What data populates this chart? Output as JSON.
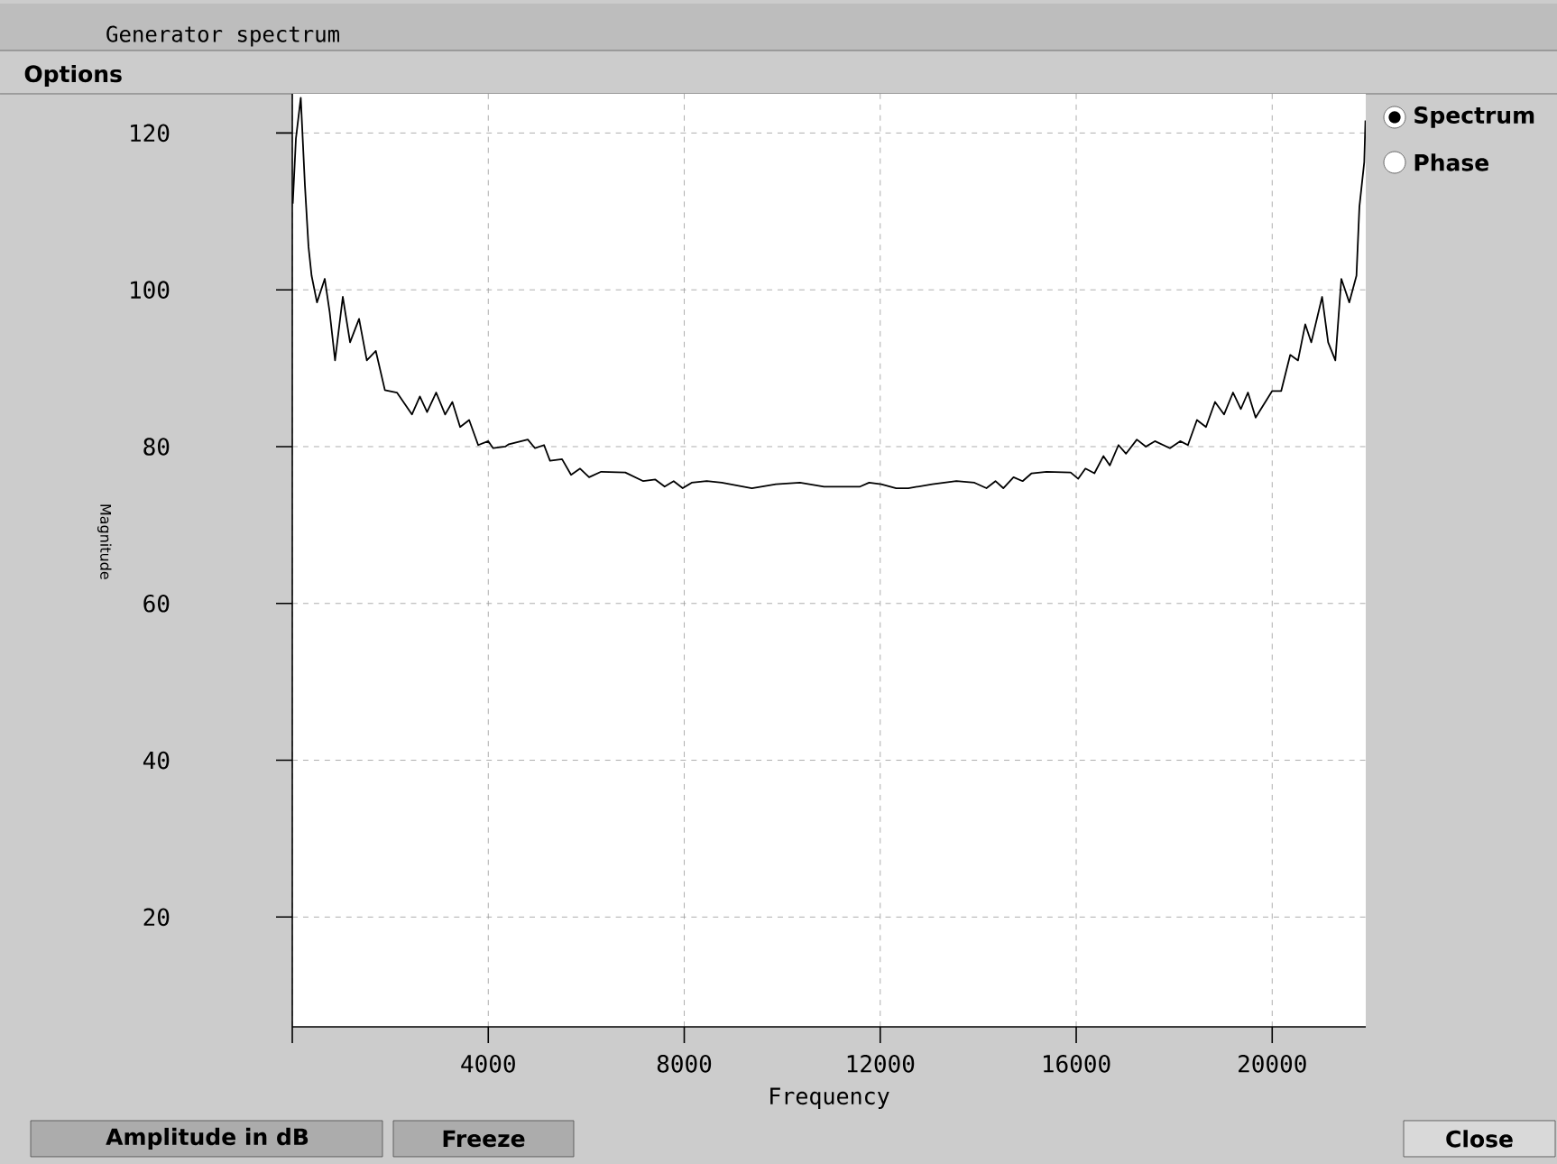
{
  "chart_data": {
    "type": "line",
    "title": "Generator spectrum",
    "xlabel": "Frequency",
    "ylabel": "Magnitude",
    "annotations": [
      "Options",
      "Spectrum",
      "Phase",
      "Amplitude in dB",
      "Freeze",
      "Close"
    ],
    "x": [
      10,
      74,
      173,
      258,
      331,
      394,
      504,
      663,
      762,
      873,
      1031,
      1179,
      1363,
      1521,
      1705,
      1890,
      2136,
      2442,
      2604,
      2751,
      2936,
      3120,
      3267,
      3425,
      3610,
      3794,
      4000,
      4100,
      4346,
      4420,
      4807,
      4954,
      5138,
      5260,
      5506,
      5690,
      5874,
      6058,
      6304,
      6796,
      7164,
      7410,
      7600,
      7784,
      7968,
      8152,
      8459,
      8766,
      9380,
      9871,
      10362,
      10853,
      11589,
      11773,
      12019,
      12326,
      12572,
      13063,
      13308,
      13554,
      13923,
      14168,
      14352,
      14512,
      14721,
      14906,
      15090,
      15396,
      15887,
      16041,
      16188,
      16372,
      16556,
      16685,
      16863,
      17017,
      17238,
      17422,
      17606,
      17913,
      18122,
      18280,
      18464,
      18649,
      18833,
      19017,
      19201,
      19361,
      19505,
      19662,
      20000,
      20184,
      20368,
      20527,
      20675,
      20798,
      21019,
      21142,
      21289,
      21411,
      21574,
      21720,
      21780,
      21879,
      21903
    ],
    "series": [
      {
        "color": "#000000",
        "values": [
          111,
          119.3,
          124.5,
          113.3,
          105.5,
          101.8,
          98.4,
          101.4,
          97.2,
          91,
          99.1,
          93.3,
          96.3,
          91,
          92.2,
          87.2,
          86.9,
          84.1,
          86.4,
          84.4,
          86.9,
          84.1,
          85.7,
          82.5,
          83.4,
          80.2,
          80.7,
          79.8,
          80,
          80.3,
          80.9,
          79.8,
          80.2,
          78.2,
          78.4,
          76.4,
          77.2,
          76.1,
          76.8,
          76.7,
          75.6,
          75.8,
          74.9,
          75.6,
          74.7,
          75.4,
          75.6,
          75.4,
          74.7,
          75.2,
          75.4,
          74.9,
          74.9,
          75.4,
          75.2,
          74.7,
          74.7,
          75.2,
          75.4,
          75.6,
          75.4,
          74.7,
          75.6,
          74.7,
          76.1,
          75.6,
          76.6,
          76.8,
          76.7,
          75.9,
          77.2,
          76.6,
          78.8,
          77.6,
          80.2,
          79.1,
          80.9,
          80,
          80.7,
          79.8,
          80.7,
          80.2,
          83.4,
          82.5,
          85.7,
          84.1,
          86.9,
          84.8,
          86.9,
          83.7,
          87.1,
          87.1,
          91.7,
          91,
          95.6,
          93.3,
          99.1,
          93.3,
          91,
          101.4,
          98.4,
          101.8,
          110.6,
          116.3,
          121.6
        ]
      }
    ],
    "xlim": [
      0,
      21910
    ],
    "ylim": [
      6,
      125
    ],
    "xticks": [
      {
        "value": 0,
        "label": null
      },
      4000,
      8000,
      12000,
      16000,
      20000
    ],
    "yticks": [
      20,
      40,
      60,
      80,
      100,
      120
    ],
    "grid": true,
    "marker": "none",
    "line_style": "solid"
  }
}
